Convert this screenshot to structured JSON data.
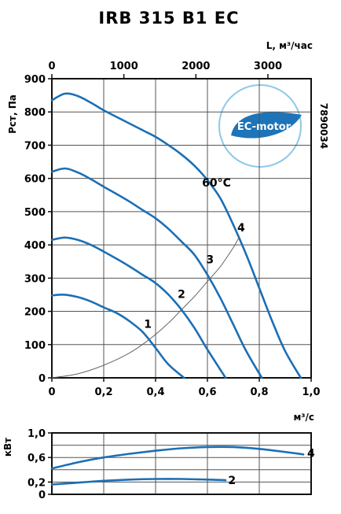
{
  "chart_data": [
    {
      "type": "line",
      "title": "IRB 315 B1 EC",
      "xlabel": "м³/с",
      "ylabel": "Pст, Па",
      "x2label": "L, м³/час",
      "xlim": [
        0,
        1.0
      ],
      "ylim": [
        0,
        900
      ],
      "x2lim": [
        0,
        3600
      ],
      "x_ticks": [
        "0",
        "0,2",
        "0,4",
        "0,6",
        "0,8",
        "1,0"
      ],
      "x2_ticks": [
        "0",
        "1000",
        "2000",
        "3000"
      ],
      "y_ticks": [
        "0",
        "100",
        "200",
        "300",
        "400",
        "500",
        "600",
        "700",
        "800",
        "900"
      ],
      "grid": true,
      "series": [
        {
          "name": "1",
          "color": "#1c6fb5",
          "x": [
            0,
            0.05,
            0.1,
            0.15,
            0.2,
            0.25,
            0.3,
            0.35,
            0.4,
            0.45,
            0.51
          ],
          "y": [
            248,
            250,
            243,
            230,
            212,
            195,
            170,
            138,
            90,
            40,
            0
          ]
        },
        {
          "name": "2",
          "color": "#1c6fb5",
          "x": [
            0,
            0.05,
            0.1,
            0.15,
            0.2,
            0.25,
            0.3,
            0.35,
            0.4,
            0.45,
            0.5,
            0.55,
            0.6,
            0.67
          ],
          "y": [
            415,
            422,
            415,
            400,
            380,
            358,
            335,
            310,
            285,
            250,
            205,
            150,
            85,
            0
          ]
        },
        {
          "name": "3",
          "color": "#1c6fb5",
          "x": [
            0,
            0.05,
            0.1,
            0.15,
            0.2,
            0.25,
            0.3,
            0.35,
            0.4,
            0.45,
            0.5,
            0.55,
            0.6,
            0.65,
            0.7,
            0.75,
            0.81
          ],
          "y": [
            620,
            630,
            618,
            598,
            575,
            553,
            530,
            505,
            480,
            448,
            410,
            370,
            310,
            240,
            160,
            80,
            0
          ]
        },
        {
          "name": "4",
          "color": "#1c6fb5",
          "x": [
            0,
            0.05,
            0.1,
            0.15,
            0.2,
            0.25,
            0.3,
            0.35,
            0.4,
            0.45,
            0.5,
            0.55,
            0.6,
            0.65,
            0.7,
            0.75,
            0.8,
            0.85,
            0.9,
            0.96
          ],
          "y": [
            835,
            855,
            848,
            828,
            805,
            785,
            765,
            745,
            725,
            700,
            672,
            638,
            595,
            540,
            460,
            370,
            270,
            170,
            80,
            0
          ]
        },
        {
          "name": "",
          "color": "#666666",
          "x": [
            0,
            0.1,
            0.2,
            0.3,
            0.38,
            0.45,
            0.5,
            0.55,
            0.6,
            0.65,
            0.7,
            0.72
          ],
          "y": [
            0,
            12,
            38,
            75,
            118,
            165,
            205,
            245,
            290,
            335,
            392,
            420
          ]
        }
      ],
      "curve_labels": [
        {
          "text": "1",
          "x": 0.37,
          "y": 150
        },
        {
          "text": "2",
          "x": 0.5,
          "y": 240
        },
        {
          "text": "3",
          "x": 0.61,
          "y": 345
        },
        {
          "text": "4",
          "x": 0.73,
          "y": 440
        },
        {
          "text": "60°C",
          "x": 0.635,
          "y": 575
        }
      ],
      "annotations": {
        "code": "7890034",
        "badge": "EC-motor"
      }
    },
    {
      "type": "line",
      "ylabel": "кВт",
      "xlim": [
        0,
        1.0
      ],
      "ylim": [
        0,
        1.0
      ],
      "y_ticks": [
        "0",
        "0,2",
        "0,6",
        "1,0"
      ],
      "y_tick_values": [
        0,
        0.2,
        0.6,
        1.0
      ],
      "grid": true,
      "series": [
        {
          "name": "2",
          "color": "#1c6fb5",
          "x": [
            0,
            0.1,
            0.2,
            0.3,
            0.4,
            0.5,
            0.6,
            0.67
          ],
          "y": [
            0.16,
            0.19,
            0.22,
            0.24,
            0.25,
            0.25,
            0.24,
            0.23
          ]
        },
        {
          "name": "4",
          "color": "#1c6fb5",
          "x": [
            0,
            0.1,
            0.2,
            0.3,
            0.4,
            0.5,
            0.6,
            0.7,
            0.8,
            0.9,
            0.97
          ],
          "y": [
            0.42,
            0.52,
            0.6,
            0.66,
            0.71,
            0.75,
            0.77,
            0.77,
            0.74,
            0.69,
            0.65
          ]
        }
      ],
      "curve_labels": [
        {
          "text": "2",
          "x": 0.68,
          "y": 0.23
        },
        {
          "text": "4",
          "x": 0.985,
          "y": 0.67
        }
      ]
    }
  ]
}
